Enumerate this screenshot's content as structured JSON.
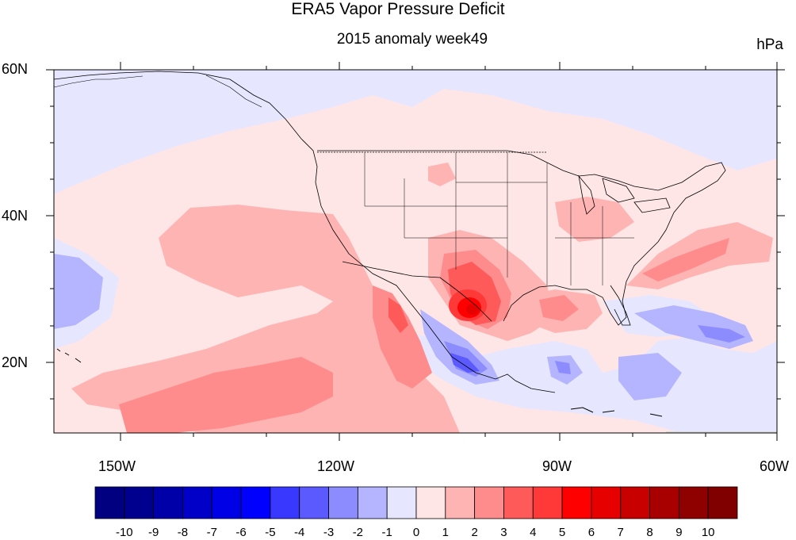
{
  "title": "ERA5 Vapor Pressure Deficit",
  "subtitle": "2015 anomaly week49",
  "units": "hPa",
  "lat_labels": [
    "60N",
    "40N",
    "20N"
  ],
  "lon_labels": [
    "150W",
    "120W",
    "90W",
    "60W"
  ],
  "colorbar": {
    "labels": [
      "-10",
      "-9",
      "-8",
      "-7",
      "-6",
      "-5",
      "-4",
      "-3",
      "-2",
      "-1",
      "0",
      "1",
      "2",
      "3",
      "4",
      "5",
      "6",
      "7",
      "8",
      "9",
      "10"
    ],
    "colors": [
      "#000080",
      "#00008f",
      "#0000a8",
      "#0000c8",
      "#0000e6",
      "#0000ff",
      "#3838ff",
      "#5a5aff",
      "#8c8cff",
      "#b4b4ff",
      "#e6e6ff",
      "#ffe6e6",
      "#ffb4b4",
      "#ff8c8c",
      "#ff5a5a",
      "#ff3838",
      "#ff0000",
      "#e60000",
      "#c80000",
      "#a80000",
      "#8f0000",
      "#800000"
    ]
  },
  "map": {
    "lon_range": [
      -160,
      -60
    ],
    "lat_range": [
      10,
      60
    ],
    "features": [
      "coastlines",
      "us-state-borders",
      "country-borders"
    ]
  }
}
